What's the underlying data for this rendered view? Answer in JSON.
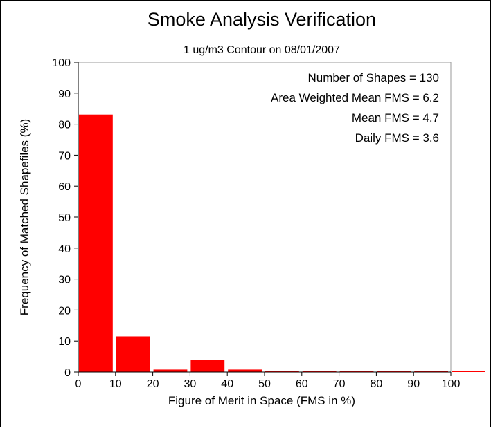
{
  "chart_data": {
    "type": "bar",
    "title": "Smoke Analysis Verification",
    "subtitle": "1 ug/m3 Contour on 08/01/2007",
    "xlabel": "Figure of Merit in Space (FMS in %)",
    "ylabel": "Frequency of Matched Shapefiles (%)",
    "xlim": [
      0,
      100
    ],
    "ylim": [
      0,
      100
    ],
    "x_ticks": [
      "0",
      "10",
      "20",
      "30",
      "40",
      "50",
      "60",
      "70",
      "80",
      "90",
      "100"
    ],
    "y_ticks": [
      "0",
      "10",
      "20",
      "30",
      "40",
      "50",
      "60",
      "70",
      "80",
      "90",
      "100"
    ],
    "bins": [
      {
        "start": 0,
        "end": 10,
        "value": 83.1
      },
      {
        "start": 10,
        "end": 20,
        "value": 11.5
      },
      {
        "start": 20,
        "end": 30,
        "value": 0.8
      },
      {
        "start": 30,
        "end": 40,
        "value": 3.8
      },
      {
        "start": 40,
        "end": 50,
        "value": 0.8
      },
      {
        "start": 50,
        "end": 60,
        "value": 0
      },
      {
        "start": 60,
        "end": 70,
        "value": 0
      },
      {
        "start": 70,
        "end": 80,
        "value": 0
      },
      {
        "start": 80,
        "end": 90,
        "value": 0
      },
      {
        "start": 90,
        "end": 100,
        "value": 0
      },
      {
        "start": 100,
        "end": 110,
        "value": 0
      }
    ],
    "bar_color": "#ff0000",
    "grid": false,
    "annotations": [
      "Number of Shapes = 130",
      "Area Weighted Mean FMS = 6.2",
      "Mean FMS = 4.7",
      "Daily FMS = 3.6"
    ]
  }
}
